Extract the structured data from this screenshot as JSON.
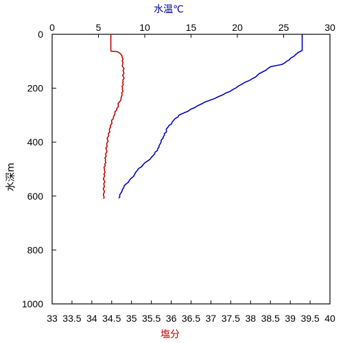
{
  "chart_data": {
    "type": "line",
    "top_axis": {
      "label": "水温℃",
      "color": "#0000a0",
      "range": [
        0,
        30
      ],
      "ticks": [
        "0",
        "5",
        "10",
        "15",
        "20",
        "25",
        "30"
      ]
    },
    "bottom_axis": {
      "label": "塩分",
      "color": "#c00000",
      "range": [
        33,
        40
      ],
      "ticks": [
        "33",
        "33.5",
        "34",
        "34.5",
        "35",
        "35.5",
        "36",
        "36.5",
        "37",
        "37.5",
        "38",
        "38.5",
        "39",
        "39.5",
        "40"
      ]
    },
    "left_axis": {
      "label": "水深m",
      "range": [
        0,
        1000
      ],
      "inverted": true,
      "ticks": [
        "0",
        "200",
        "400",
        "600",
        "800",
        "1000"
      ]
    },
    "grid": false,
    "series": [
      {
        "axis": "top",
        "color": "#0000c0",
        "points": [
          [
            27.0,
            0
          ],
          [
            27.0,
            60
          ],
          [
            26.3,
            75
          ],
          [
            25.6,
            95
          ],
          [
            24.8,
            112
          ],
          [
            23.6,
            120
          ],
          [
            22.7,
            140
          ],
          [
            21.6,
            165
          ],
          [
            20.5,
            185
          ],
          [
            19.5,
            205
          ],
          [
            18.4,
            225
          ],
          [
            17.0,
            245
          ],
          [
            15.7,
            265
          ],
          [
            14.7,
            285
          ],
          [
            13.7,
            300
          ],
          [
            13.1,
            320
          ],
          [
            12.5,
            345
          ],
          [
            12.0,
            380
          ],
          [
            11.7,
            405
          ],
          [
            11.4,
            425
          ],
          [
            10.9,
            450
          ],
          [
            10.3,
            470
          ],
          [
            9.8,
            485
          ],
          [
            9.2,
            505
          ],
          [
            8.9,
            520
          ],
          [
            8.5,
            535
          ],
          [
            8.0,
            555
          ],
          [
            7.6,
            575
          ],
          [
            7.4,
            590
          ],
          [
            7.2,
            608
          ]
        ]
      },
      {
        "axis": "bottom",
        "color": "#c00000",
        "points": [
          [
            34.48,
            0
          ],
          [
            34.48,
            62
          ],
          [
            34.65,
            65
          ],
          [
            34.76,
            80
          ],
          [
            34.78,
            110
          ],
          [
            34.8,
            140
          ],
          [
            34.79,
            175
          ],
          [
            34.77,
            205
          ],
          [
            34.75,
            230
          ],
          [
            34.7,
            250
          ],
          [
            34.63,
            275
          ],
          [
            34.57,
            300
          ],
          [
            34.5,
            325
          ],
          [
            34.45,
            350
          ],
          [
            34.41,
            380
          ],
          [
            34.38,
            410
          ],
          [
            34.36,
            440
          ],
          [
            34.34,
            470
          ],
          [
            34.32,
            500
          ],
          [
            34.31,
            530
          ],
          [
            34.31,
            560
          ],
          [
            34.3,
            590
          ],
          [
            34.3,
            610
          ]
        ]
      }
    ]
  }
}
